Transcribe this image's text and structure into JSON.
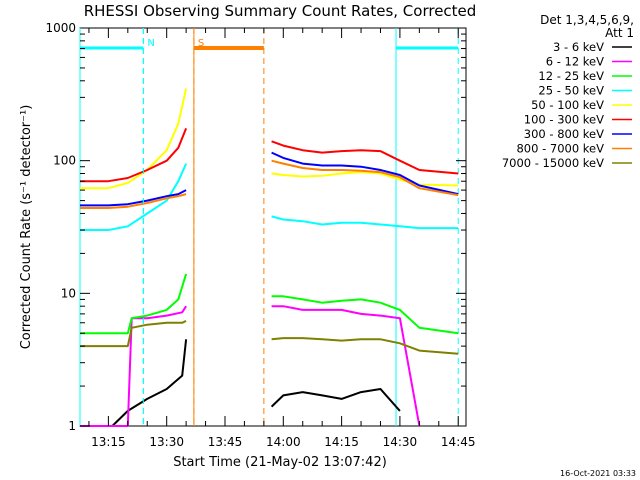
{
  "chart_data": {
    "type": "line",
    "title": "RHESSI Observing Summary Count Rates, Corrected",
    "xlabel": "Start Time (21-May-02 13:07:42)",
    "ylabel": "Corrected Count Rate (s⁻¹ detector⁻¹)",
    "x_ticks": [
      "13:15",
      "13:30",
      "13:45",
      "14:00",
      "14:15",
      "14:30",
      "14:45"
    ],
    "y_ticks": [
      "1",
      "10",
      "100",
      "1000"
    ],
    "y_scale": "log",
    "ylim": [
      1,
      1000
    ],
    "xlim": [
      "13:07:42",
      "14:47"
    ],
    "legend_header": [
      "Det 1,3,4,5,6,9,",
      "Att 1"
    ],
    "legend_position": "right",
    "footer_date": "16-Oct-2021 03:33",
    "series": [
      {
        "name": "3 - 6 keV",
        "color": "#000000",
        "segments": [
          {
            "x": [
              "13:07:42",
              "13:12",
              "13:16",
              "13:20",
              "13:25",
              "13:30",
              "13:34",
              "13:35"
            ],
            "y": [
              1,
              1,
              1,
              1.3,
              1.6,
              1.9,
              2.4,
              4.5
            ]
          },
          {
            "x": [
              "13:57",
              "14:00",
              "14:05",
              "14:10",
              "14:15",
              "14:20",
              "14:25",
              "14:30"
            ],
            "y": [
              1.4,
              1.7,
              1.8,
              1.7,
              1.6,
              1.8,
              1.9,
              1.3
            ]
          }
        ]
      },
      {
        "name": "6 - 12 keV",
        "color": "#ff00ff",
        "segments": [
          {
            "x": [
              "13:07:42",
              "13:20",
              "13:21",
              "13:25",
              "13:30",
              "13:34",
              "13:35"
            ],
            "y": [
              1,
              1,
              6.5,
              6.5,
              6.8,
              7.2,
              8
            ]
          },
          {
            "x": [
              "13:57",
              "14:00",
              "14:05",
              "14:10",
              "14:15",
              "14:20",
              "14:25",
              "14:30",
              "14:35"
            ],
            "y": [
              8,
              8,
              7.5,
              7.5,
              7.5,
              7,
              6.8,
              6.5,
              1
            ]
          }
        ]
      },
      {
        "name": "12 - 25 keV",
        "color": "#00ff00",
        "segments": [
          {
            "x": [
              "13:07:42",
              "13:20",
              "13:21",
              "13:25",
              "13:30",
              "13:33",
              "13:35"
            ],
            "y": [
              5,
              5,
              6.5,
              6.8,
              7.5,
              9,
              14
            ]
          },
          {
            "x": [
              "13:57",
              "14:00",
              "14:05",
              "14:10",
              "14:15",
              "14:20",
              "14:25",
              "14:30",
              "14:35",
              "14:45"
            ],
            "y": [
              9.5,
              9.5,
              9,
              8.5,
              8.8,
              9,
              8.5,
              7.5,
              5.5,
              5
            ]
          }
        ]
      },
      {
        "name": "25 - 50 keV",
        "color": "#00ffff",
        "segments": [
          {
            "x": [
              "13:07:42",
              "13:15",
              "13:20",
              "13:25",
              "13:30",
              "13:33",
              "13:35"
            ],
            "y": [
              30,
              30,
              32,
              40,
              50,
              70,
              95
            ]
          },
          {
            "x": [
              "13:57",
              "14:00",
              "14:05",
              "14:10",
              "14:15",
              "14:20",
              "14:25",
              "14:30",
              "14:35",
              "14:45"
            ],
            "y": [
              38,
              36,
              35,
              33,
              34,
              34,
              33,
              32,
              31,
              31
            ]
          }
        ]
      },
      {
        "name": "50 - 100 keV",
        "color": "#ffff00",
        "segments": [
          {
            "x": [
              "13:07:42",
              "13:15",
              "13:20",
              "13:25",
              "13:30",
              "13:33",
              "13:35"
            ],
            "y": [
              62,
              62,
              68,
              85,
              120,
              190,
              350
            ]
          },
          {
            "x": [
              "13:57",
              "14:00",
              "14:05",
              "14:10",
              "14:15",
              "14:20",
              "14:25",
              "14:30",
              "14:35",
              "14:45"
            ],
            "y": [
              80,
              78,
              76,
              77,
              80,
              82,
              80,
              72,
              66,
              65
            ]
          }
        ]
      },
      {
        "name": "100 - 300 keV",
        "color": "#ff0000",
        "segments": [
          {
            "x": [
              "13:07:42",
              "13:15",
              "13:20",
              "13:25",
              "13:30",
              "13:33",
              "13:35"
            ],
            "y": [
              70,
              70,
              74,
              85,
              100,
              125,
              175
            ]
          },
          {
            "x": [
              "13:57",
              "14:00",
              "14:05",
              "14:10",
              "14:15",
              "14:20",
              "14:25",
              "14:30",
              "14:35",
              "14:45"
            ],
            "y": [
              140,
              130,
              120,
              115,
              118,
              120,
              118,
              100,
              85,
              80
            ]
          }
        ]
      },
      {
        "name": "300 - 800 keV",
        "color": "#0000ff",
        "segments": [
          {
            "x": [
              "13:07:42",
              "13:15",
              "13:20",
              "13:25",
              "13:30",
              "13:33",
              "13:35"
            ],
            "y": [
              46,
              46,
              47,
              50,
              54,
              56,
              60
            ]
          },
          {
            "x": [
              "13:57",
              "14:00",
              "14:05",
              "14:10",
              "14:15",
              "14:20",
              "14:25",
              "14:30",
              "14:35",
              "14:45"
            ],
            "y": [
              115,
              105,
              95,
              92,
              92,
              90,
              85,
              78,
              65,
              56
            ]
          }
        ]
      },
      {
        "name": "800 - 7000 keV",
        "color": "#ff8000",
        "segments": [
          {
            "x": [
              "13:07:42",
              "13:15",
              "13:20",
              "13:25",
              "13:30",
              "13:33",
              "13:35"
            ],
            "y": [
              44,
              44,
              45,
              48,
              52,
              54,
              56
            ]
          },
          {
            "x": [
              "13:57",
              "14:00",
              "14:05",
              "14:10",
              "14:15",
              "14:20",
              "14:25",
              "14:30",
              "14:35",
              "14:45"
            ],
            "y": [
              100,
              95,
              88,
              85,
              85,
              84,
              82,
              75,
              62,
              55
            ]
          }
        ]
      },
      {
        "name": "7000 - 15000 keV",
        "color": "#808000",
        "segments": [
          {
            "x": [
              "13:07:42",
              "13:20",
              "13:21",
              "13:25",
              "13:30",
              "13:34",
              "13:35"
            ],
            "y": [
              4,
              4,
              5.5,
              5.8,
              6,
              6,
              6.2
            ]
          },
          {
            "x": [
              "13:57",
              "14:00",
              "14:05",
              "14:10",
              "14:15",
              "14:20",
              "14:25",
              "14:30",
              "14:35",
              "14:45"
            ],
            "y": [
              4.5,
              4.6,
              4.6,
              4.5,
              4.4,
              4.5,
              4.5,
              4.2,
              3.7,
              3.5
            ]
          }
        ]
      }
    ],
    "annotations": [
      {
        "label": "N",
        "color": "#00ffff",
        "line_x": "13:24"
      },
      {
        "label": "S",
        "color": "#ff8000",
        "line_x": "13:37"
      }
    ],
    "background_shading": [
      {
        "range": [
          "13:07:42",
          "13:24"
        ],
        "color": "#00ffff",
        "type": "night"
      },
      {
        "range": [
          "14:29",
          "14:45"
        ],
        "color": "#00ffff",
        "type": "night"
      },
      {
        "range": [
          "13:37",
          "13:55"
        ],
        "color": "#ff8000",
        "type": "saa"
      }
    ]
  }
}
